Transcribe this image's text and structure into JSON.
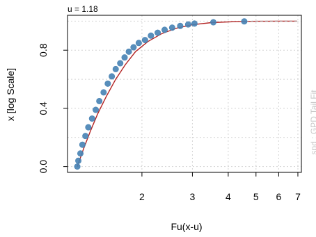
{
  "chart_data": {
    "type": "scatter",
    "title": "",
    "top_label": "u = 1.18",
    "xlabel": "Fu(x-u)",
    "ylabel": "x [log Scale]",
    "side_note": "spd  : GPD Tail Fit",
    "x_scale": "log",
    "xlim": [
      1.1,
      7.2
    ],
    "ylim": [
      -0.04,
      1.04
    ],
    "x_ticks": [
      2,
      3,
      4,
      5,
      6,
      7
    ],
    "x_tick_labels": [
      "2",
      "3",
      "4",
      "5",
      "6",
      "7"
    ],
    "y_ticks": [
      0.0,
      0.4,
      0.8
    ],
    "y_tick_labels": [
      "0.0",
      "0.4",
      "0.8"
    ],
    "grid": true,
    "grid_x": [
      2,
      3,
      4,
      5,
      6,
      7
    ],
    "grid_y": [
      0.0,
      0.2,
      0.4,
      0.6,
      0.8,
      1.0
    ],
    "series": [
      {
        "kind": "points",
        "color": "#4682b4",
        "x": [
          1.19,
          1.2,
          1.22,
          1.24,
          1.27,
          1.3,
          1.34,
          1.38,
          1.42,
          1.47,
          1.52,
          1.57,
          1.62,
          1.68,
          1.74,
          1.8,
          1.87,
          1.95,
          2.05,
          2.15,
          2.27,
          2.4,
          2.55,
          2.72,
          2.9,
          3.05,
          3.55,
          4.55
        ],
        "y": [
          0.0,
          0.04,
          0.09,
          0.15,
          0.21,
          0.27,
          0.33,
          0.39,
          0.45,
          0.51,
          0.57,
          0.62,
          0.67,
          0.71,
          0.75,
          0.79,
          0.82,
          0.85,
          0.87,
          0.9,
          0.92,
          0.94,
          0.955,
          0.967,
          0.977,
          0.983,
          0.992,
          0.998
        ]
      },
      {
        "kind": "fit-line",
        "color": "#b22222",
        "x": [
          1.19,
          1.25,
          1.32,
          1.4,
          1.5,
          1.62,
          1.75,
          1.9,
          2.1,
          2.35,
          2.65,
          3.0,
          3.5,
          4.2,
          5.0,
          6.0,
          6.95
        ],
        "y": [
          0.0,
          0.12,
          0.24,
          0.36,
          0.48,
          0.6,
          0.7,
          0.79,
          0.86,
          0.915,
          0.952,
          0.975,
          0.99,
          0.996,
          0.999,
          1.0,
          1.0
        ]
      },
      {
        "kind": "reference-line",
        "color": "#a0a0a0",
        "x": [
          4.6,
          6.95
        ],
        "y": [
          1.0,
          1.0
        ]
      }
    ]
  }
}
